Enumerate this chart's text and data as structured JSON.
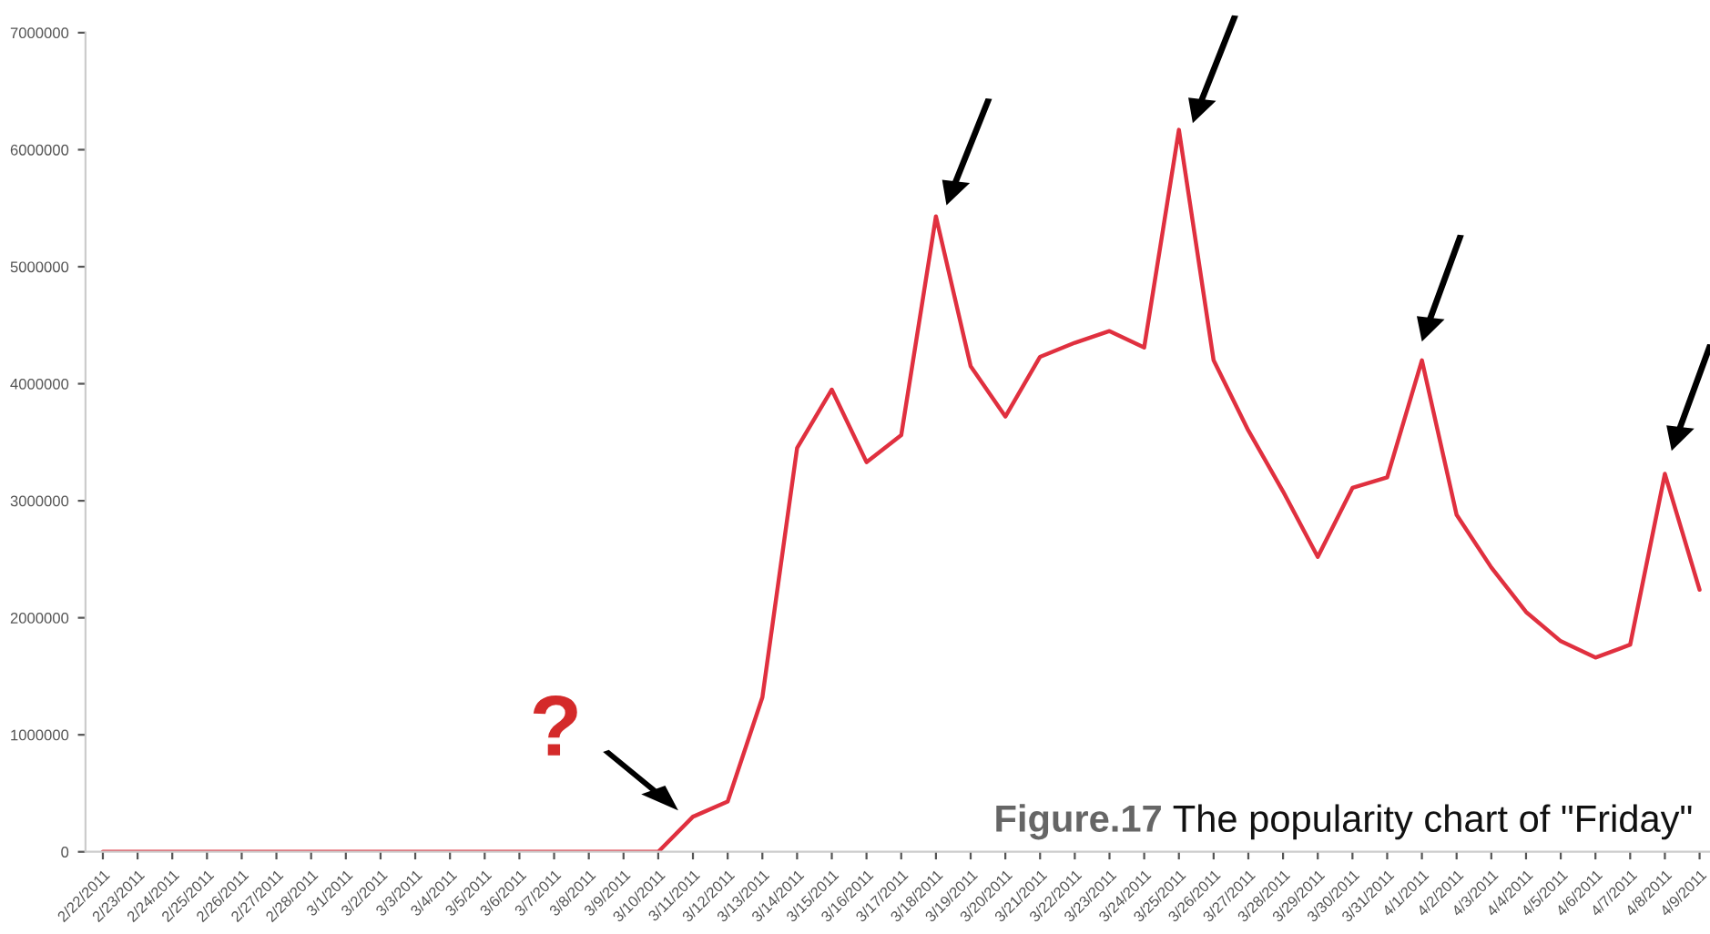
{
  "chart_data": {
    "type": "line",
    "categories": [
      "2/22/2011",
      "2/23/2011",
      "2/24/2011",
      "2/25/2011",
      "2/26/2011",
      "2/27/2011",
      "2/28/2011",
      "3/1/2011",
      "3/2/2011",
      "3/3/2011",
      "3/4/2011",
      "3/5/2011",
      "3/6/2011",
      "3/7/2011",
      "3/8/2011",
      "3/9/2011",
      "3/10/2011",
      "3/11/2011",
      "3/12/2011",
      "3/13/2011",
      "3/14/2011",
      "3/15/2011",
      "3/16/2011",
      "3/17/2011",
      "3/18/2011",
      "3/19/2011",
      "3/20/2011",
      "3/21/2011",
      "3/22/2011",
      "3/23/2011",
      "3/24/2011",
      "3/25/2011",
      "3/26/2011",
      "3/27/2011",
      "3/28/2011",
      "3/29/2011",
      "3/30/2011",
      "3/31/2011",
      "4/1/2011",
      "4/2/2011",
      "4/3/2011",
      "4/4/2011",
      "4/5/2011",
      "4/6/2011",
      "4/7/2011",
      "4/8/2011",
      "4/9/2011"
    ],
    "series": [
      {
        "color": "#e0303f",
        "values": [
          0,
          0,
          0,
          0,
          0,
          0,
          0,
          0,
          0,
          0,
          0,
          0,
          0,
          0,
          0,
          0,
          0,
          300000,
          430000,
          1320000,
          3450000,
          3950000,
          3330000,
          3560000,
          5430000,
          4150000,
          3720000,
          4230000,
          4350000,
          4450000,
          4310000,
          6170000,
          4200000,
          3600000,
          3080000,
          2520000,
          3110000,
          3200000,
          4200000,
          2880000,
          2430000,
          2050000,
          1800000,
          1660000,
          1770000,
          3230000,
          2240000
        ]
      }
    ],
    "ylim": [
      0,
      7000000
    ],
    "yticks": [
      0,
      1000000,
      2000000,
      3000000,
      4000000,
      5000000,
      6000000,
      7000000
    ],
    "grid": false,
    "legend": false,
    "marker": "none",
    "line_style": "solid",
    "annotations": [
      "?",
      "Figure.17",
      "The popularity chart of \"Friday\""
    ]
  }
}
